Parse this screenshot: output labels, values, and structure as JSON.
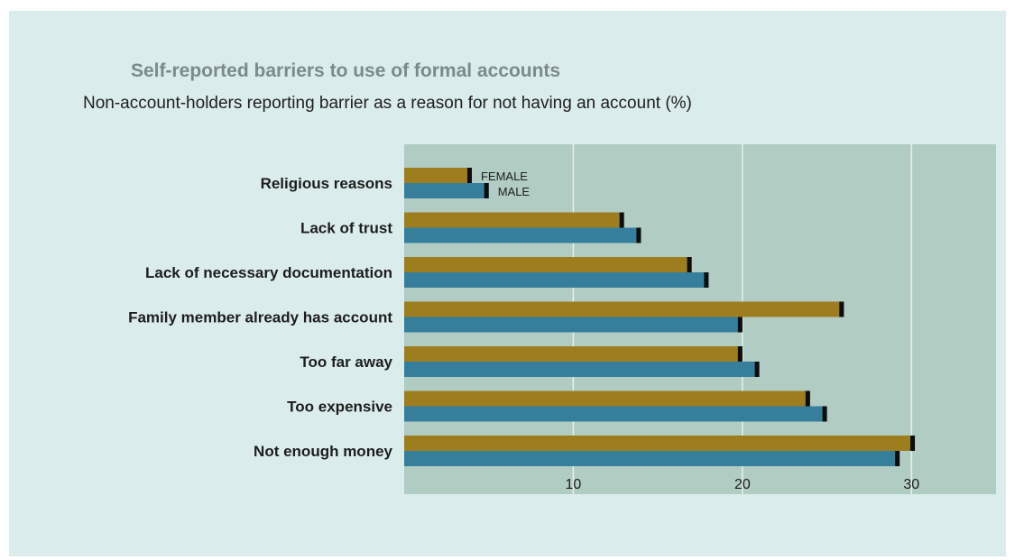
{
  "chart_data": {
    "type": "bar",
    "orientation": "horizontal",
    "title": "Self-reported barriers to use of formal accounts",
    "subtitle": "Non-account-holders reporting barrier as a reason for not having an account (%)",
    "categories": [
      "Religious reasons",
      "Lack of trust",
      "Lack of necessary documentation",
      "Family member already has account",
      "Too far away",
      "Too expensive",
      "Not enough money"
    ],
    "series": [
      {
        "name": "FEMALE",
        "color": "#9e7d1f",
        "values": [
          4,
          13,
          17,
          26,
          20,
          24,
          30.2
        ]
      },
      {
        "name": "MALE",
        "color": "#357f9c",
        "values": [
          5,
          14,
          18,
          20,
          21,
          25,
          29.3
        ]
      }
    ],
    "xlim": [
      0,
      35
    ],
    "xticks": [
      10,
      20,
      30
    ],
    "grid": true,
    "legend": "inline-on-first-bars",
    "plot_background": "#b0ccc3",
    "panel_background": "#daeceb"
  }
}
